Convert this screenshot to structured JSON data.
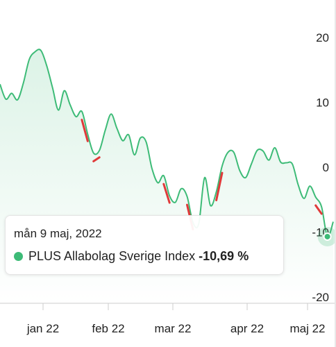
{
  "chart_data": {
    "type": "area",
    "y_axis": {
      "ticks": [
        20,
        10,
        0,
        -10,
        -20
      ],
      "range": [
        -20,
        24
      ],
      "position": "right"
    },
    "x_axis": {
      "ticks": [
        "jan 22",
        "feb 22",
        "mar 22",
        "apr 22",
        "maj 22"
      ]
    },
    "grid": false,
    "series": [
      {
        "name": "PLUS Allabolag Sverige Index",
        "color": "#3dbb77",
        "values": [
          12.8,
          10.5,
          11.4,
          10.4,
          13,
          16.6,
          17.8,
          18,
          15.6,
          12.2,
          8.8,
          11.8,
          9.6,
          7.8,
          8.6,
          5.1,
          2.2,
          2.6,
          5.7,
          8.2,
          6,
          4.1,
          5,
          1.9,
          4.5,
          3.9,
          -0.2,
          -2.4,
          -1.3,
          -4.4,
          -5.4,
          -3.3,
          -4.5,
          -8.5,
          -8.7,
          -1.6,
          -5.9,
          -3.8,
          0.2,
          2.3,
          2.3,
          -0.5,
          -1.6,
          0.5,
          2.6,
          2.5,
          1.1,
          3,
          0.8,
          0.7,
          0.5,
          -2.7,
          -4.8,
          -2.9,
          -4.6,
          -6.1,
          -10.69,
          -8.4
        ]
      }
    ],
    "tooltip": {
      "date": "mån 9 maj, 2022",
      "series": "PLUS Allabolag Sverige Index",
      "value": "-10,69 %"
    }
  }
}
